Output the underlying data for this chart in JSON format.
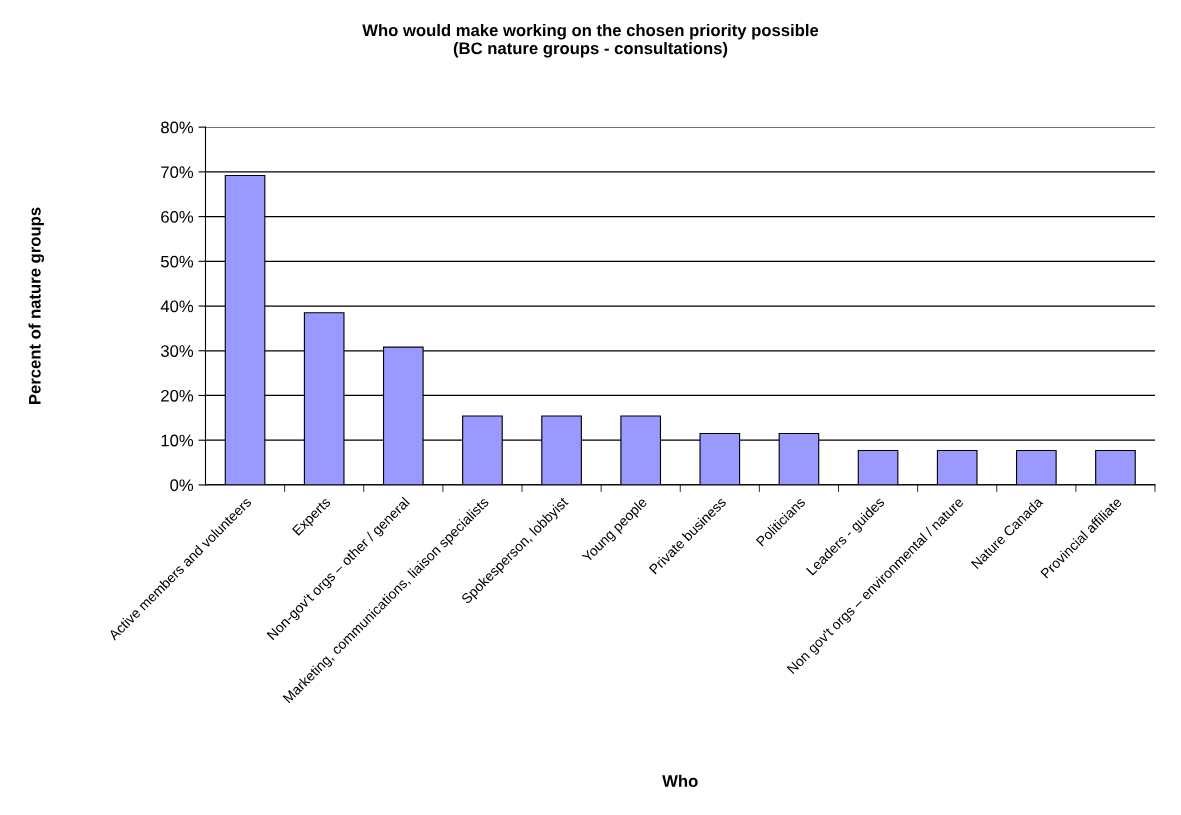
{
  "chart_data": {
    "type": "bar",
    "title": "Who would make working on the chosen priority possible\n(BC nature groups - consultations)",
    "xlabel": "Who",
    "ylabel": "Percent of nature groups",
    "categories": [
      "Active members and volunteers",
      "Experts",
      "Non-gov't orgs – other / general",
      "Marketing, communications, liaison specialists",
      "Spokesperson, lobbyist",
      "Young people",
      "Private business",
      "Politicians",
      "Leaders - guides",
      "Non gov't orgs – environmental / nature",
      "Nature Canada",
      "Provincial affiliate"
    ],
    "values": [
      69.2,
      38.5,
      30.8,
      15.4,
      15.4,
      15.4,
      11.5,
      11.5,
      7.7,
      7.7,
      7.7,
      7.7
    ],
    "color": "#9999ff",
    "ylim": [
      0,
      80
    ],
    "yticks": [
      {
        "value": 0,
        "label": "0%"
      },
      {
        "value": 10,
        "label": "10%"
      },
      {
        "value": 20,
        "label": "20%"
      },
      {
        "value": 30,
        "label": "30%"
      },
      {
        "value": 40,
        "label": "40%"
      },
      {
        "value": 50,
        "label": "50%"
      },
      {
        "value": 60,
        "label": "60%"
      },
      {
        "value": 70,
        "label": "70%"
      },
      {
        "value": 80,
        "label": "80%"
      }
    ],
    "grid": "y",
    "legend": false
  }
}
